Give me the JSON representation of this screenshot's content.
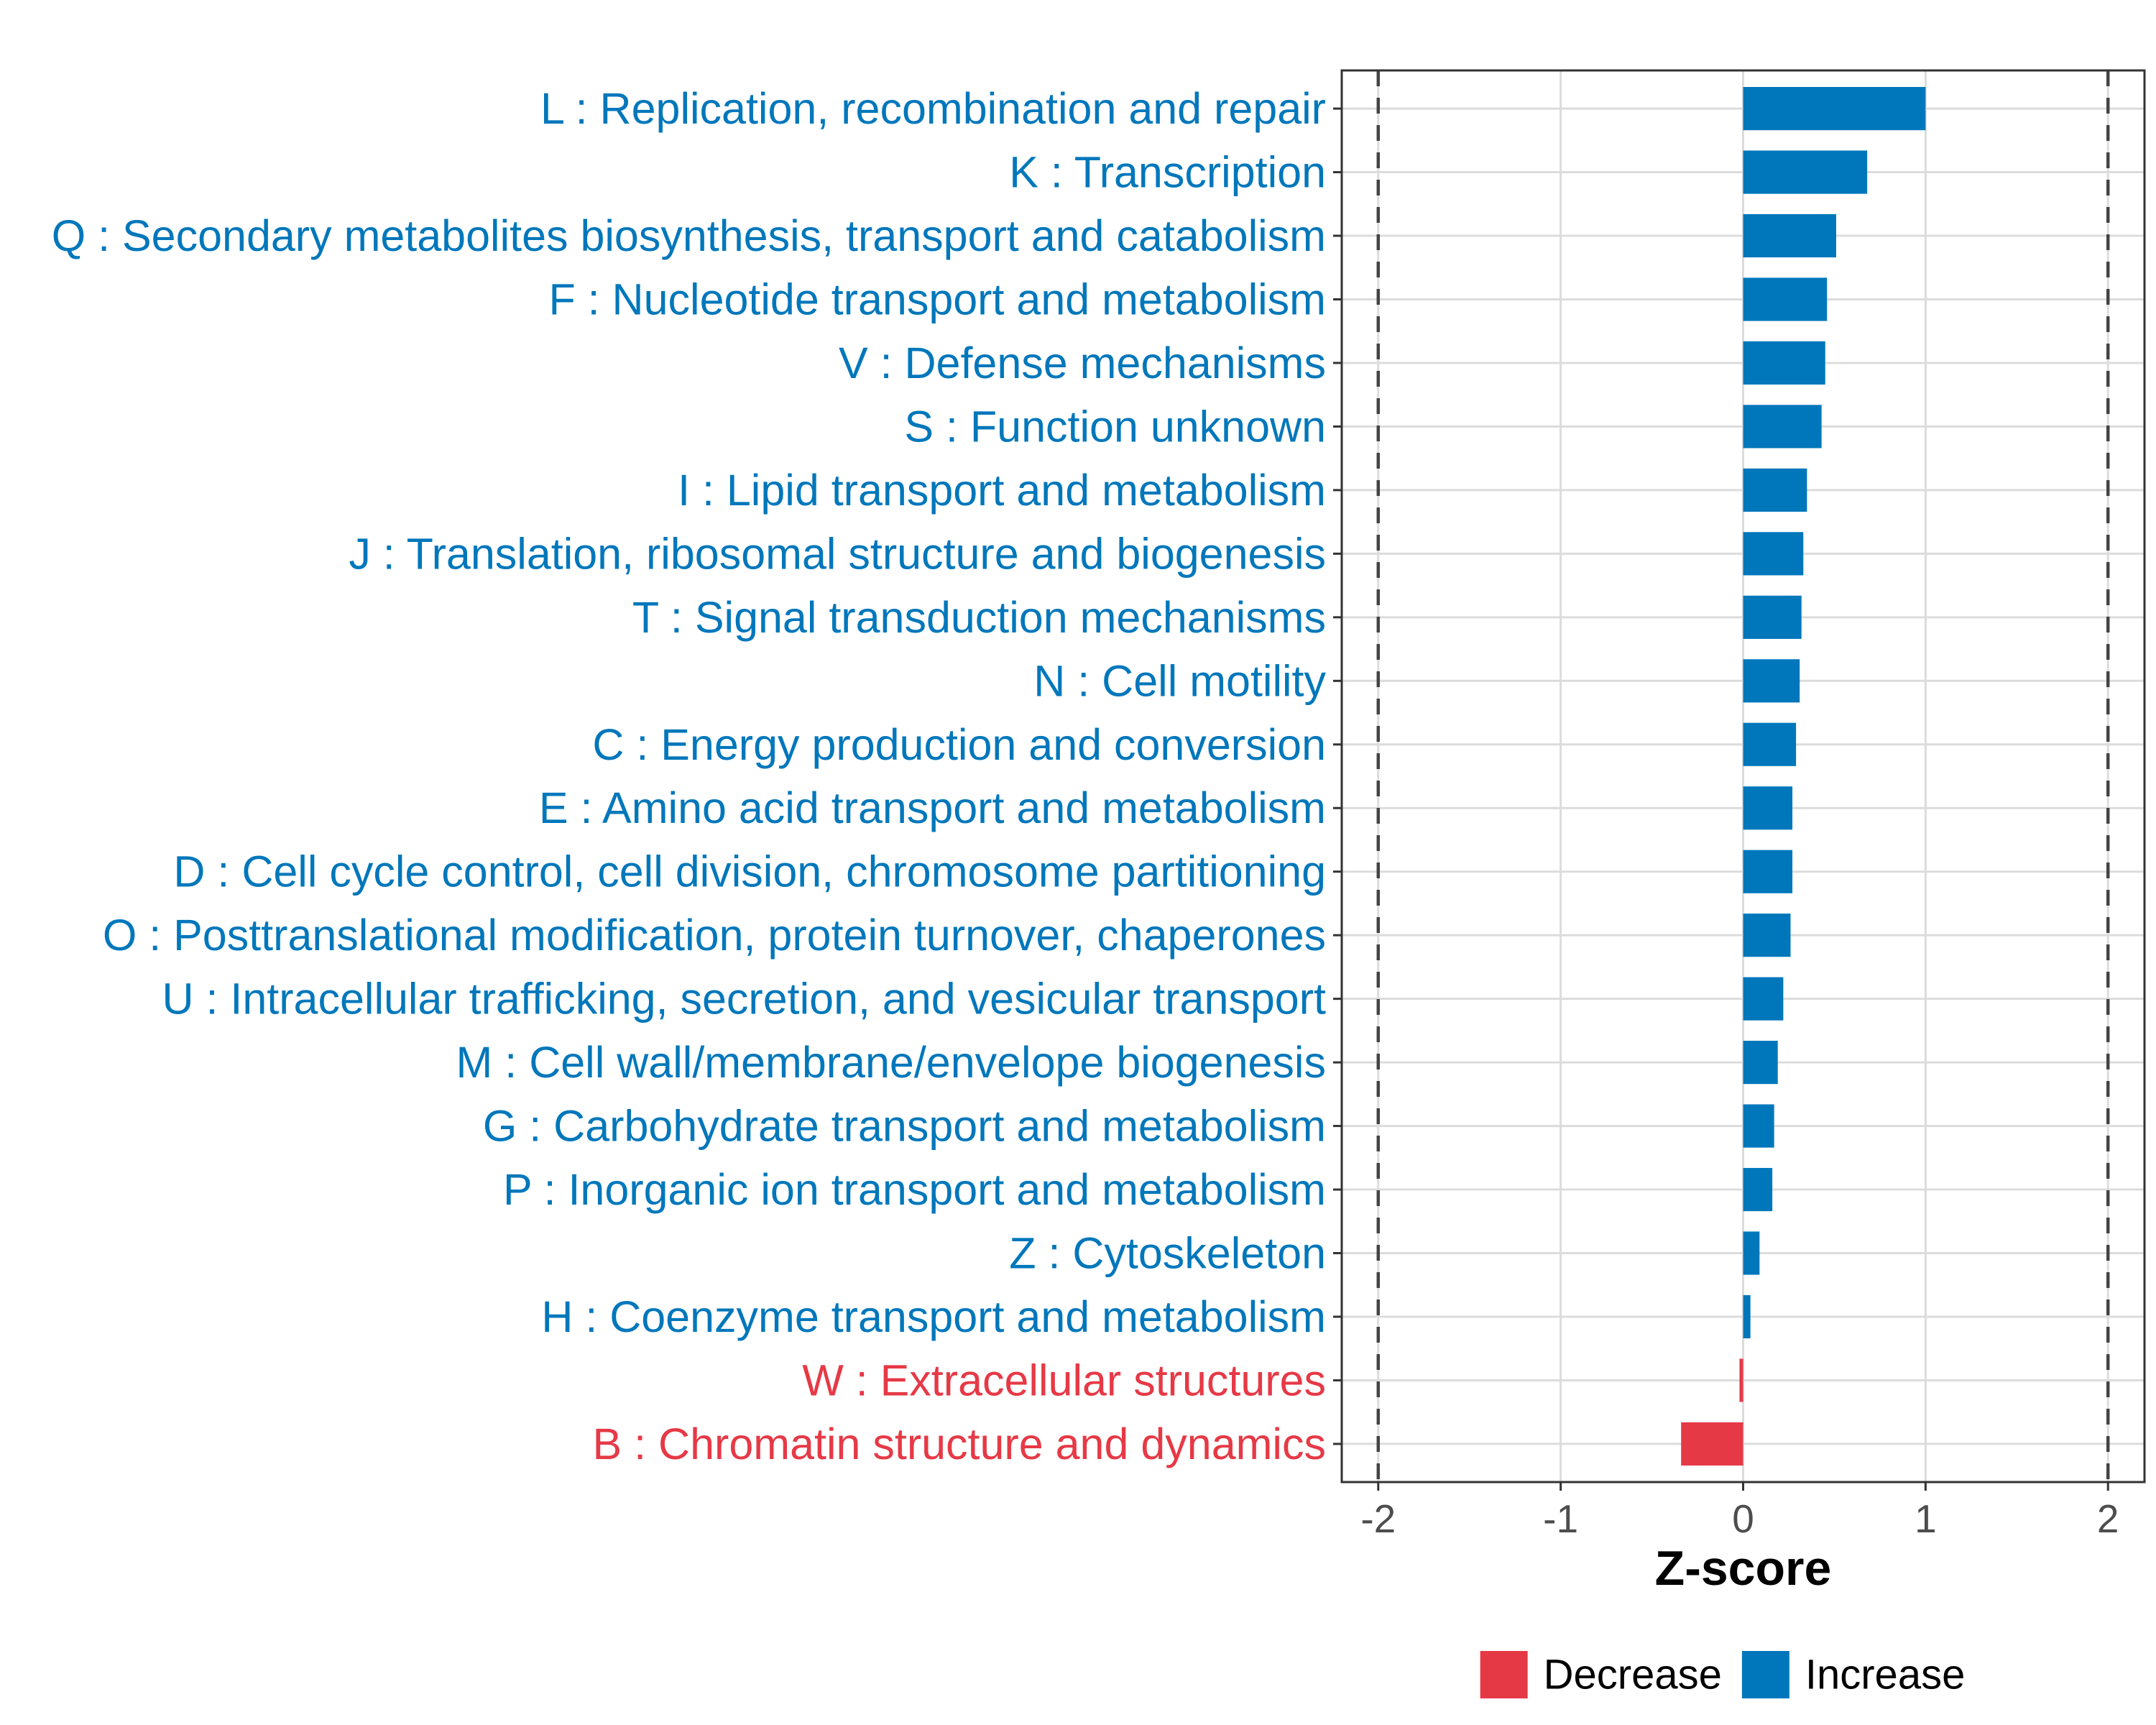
{
  "chart_data": {
    "type": "bar",
    "orientation": "horizontal",
    "title": "",
    "xlabel": "Z-score",
    "ylabel": "",
    "xlim": [
      -2.2,
      2.2
    ],
    "xticks": [
      -2,
      -1,
      0,
      1,
      2
    ],
    "xtick_labels": [
      "-2",
      "-1",
      "0",
      "1",
      "2"
    ],
    "reference_lines": [
      -2,
      2
    ],
    "grid": true,
    "colors": {
      "Increase": "#0077bb",
      "Decrease": "#e63946"
    },
    "legend": {
      "position": "bottom",
      "title": "",
      "entries": [
        "Decrease",
        "Increase"
      ]
    },
    "categories": [
      "L : Replication, recombination and repair",
      "K : Transcription",
      "Q : Secondary metabolites biosynthesis, transport and catabolism",
      "F : Nucleotide transport and metabolism",
      "V : Defense mechanisms",
      "S : Function unknown",
      "I : Lipid transport and metabolism",
      "J : Translation, ribosomal structure and biogenesis",
      "T : Signal transduction mechanisms",
      "N : Cell motility",
      "C : Energy production and conversion",
      "E : Amino acid transport and metabolism",
      "D : Cell cycle control, cell division, chromosome partitioning",
      "O : Posttranslational modification, protein turnover, chaperones",
      "U : Intracellular trafficking, secretion, and vesicular transport",
      "M : Cell wall/membrane/envelope biogenesis",
      "G : Carbohydrate transport and metabolism",
      "P : Inorganic ion transport and metabolism",
      "Z : Cytoskeleton",
      "H : Coenzyme transport and metabolism",
      "W : Extracellular structures",
      "B : Chromatin structure and dynamics"
    ],
    "values": [
      1.0,
      0.68,
      0.51,
      0.46,
      0.45,
      0.43,
      0.35,
      0.33,
      0.32,
      0.31,
      0.29,
      0.27,
      0.27,
      0.26,
      0.22,
      0.19,
      0.17,
      0.16,
      0.09,
      0.04,
      -0.02,
      -0.34
    ],
    "groups": [
      "Increase",
      "Increase",
      "Increase",
      "Increase",
      "Increase",
      "Increase",
      "Increase",
      "Increase",
      "Increase",
      "Increase",
      "Increase",
      "Increase",
      "Increase",
      "Increase",
      "Increase",
      "Increase",
      "Increase",
      "Increase",
      "Increase",
      "Increase",
      "Decrease",
      "Decrease"
    ]
  }
}
